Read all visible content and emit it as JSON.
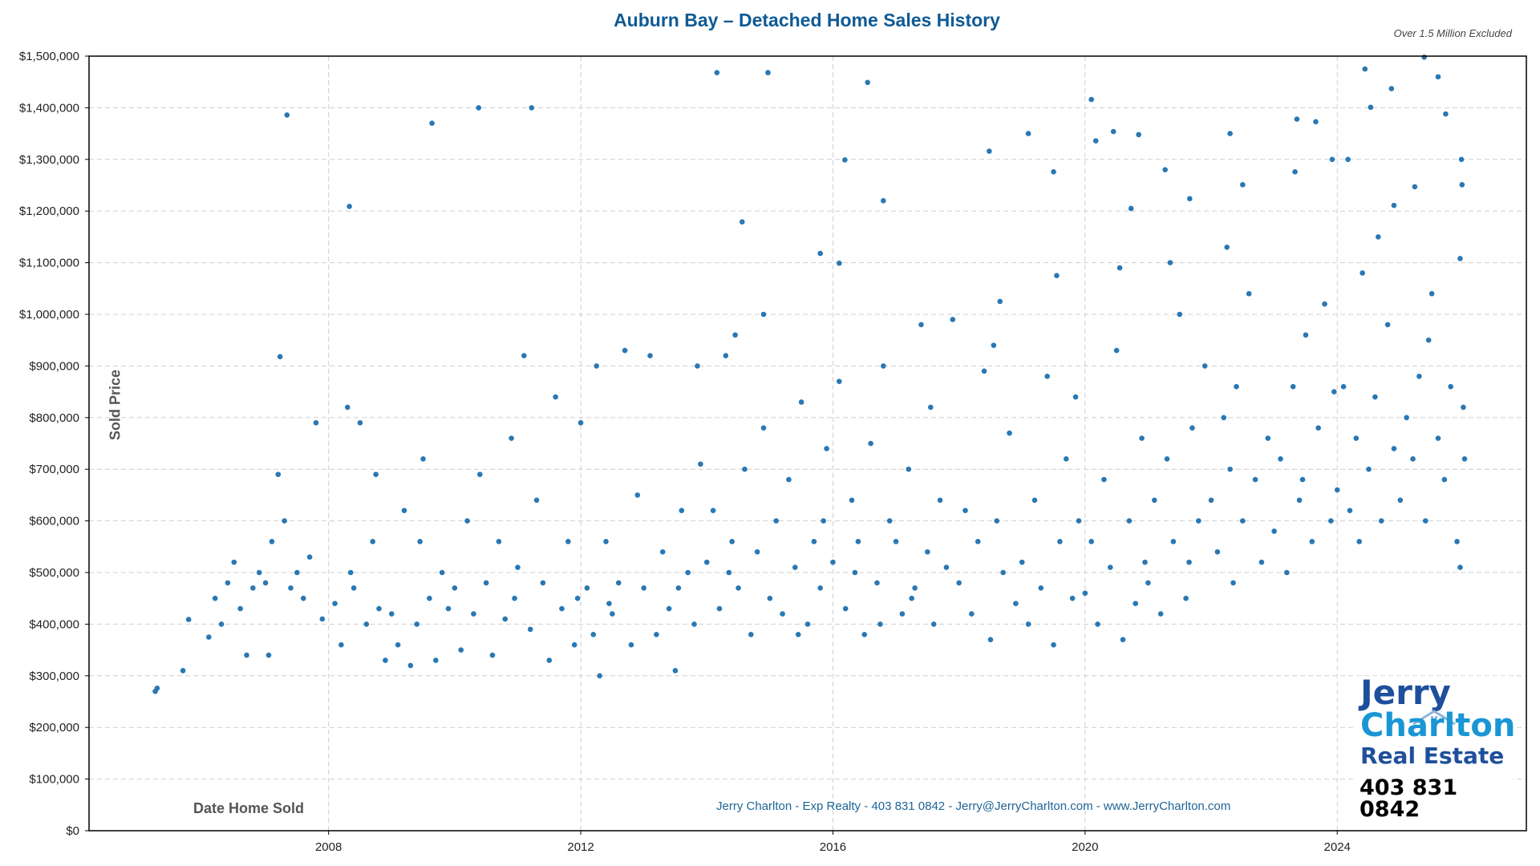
{
  "chart_data": {
    "type": "scatter",
    "title": "Auburn Bay – Detached Home Sales History",
    "subtitle": "Over 1.5 Million Excluded",
    "xlabel": "Date Home Sold",
    "ylabel": "Sold Price",
    "xlim": [
      2004.2,
      2027.0
    ],
    "ylim": [
      0,
      1500000
    ],
    "x_ticks": [
      2008,
      2012,
      2016,
      2020,
      2024
    ],
    "x_tick_labels": [
      "2008",
      "2012",
      "2016",
      "2020",
      "2024"
    ],
    "y_ticks": [
      0,
      100000,
      200000,
      300000,
      400000,
      500000,
      600000,
      700000,
      800000,
      900000,
      1000000,
      1100000,
      1200000,
      1300000,
      1400000,
      1500000
    ],
    "y_tick_labels": [
      "$0",
      "$100,000",
      "$200,000",
      "$300,000",
      "$400,000",
      "$500,000",
      "$600,000",
      "$700,000",
      "$800,000",
      "$900,000",
      "$1,000,000",
      "$1,100,000",
      "$1,200,000",
      "$1,300,000",
      "$1,400,000",
      "$1,500,000"
    ],
    "grid": true,
    "grid_style": "dashed",
    "marker_color": "#2878b5",
    "points": [
      [
        2005.25,
        270000
      ],
      [
        2005.28,
        276000
      ],
      [
        2005.69,
        310000
      ],
      [
        2005.78,
        409000
      ],
      [
        2006.1,
        375000
      ],
      [
        2007.34,
        1386000
      ],
      [
        2007.23,
        918000
      ],
      [
        2009.64,
        1370000
      ],
      [
        2010.38,
        1400000
      ],
      [
        2011.22,
        1400000
      ],
      [
        2008.33,
        1209000
      ],
      [
        2014.16,
        1468000
      ],
      [
        2014.97,
        1468000
      ],
      [
        2016.55,
        1449000
      ],
      [
        2014.56,
        1179000
      ],
      [
        2014.9,
        1000000
      ],
      [
        2016.19,
        1299000
      ],
      [
        2016.1,
        1099000
      ],
      [
        2015.8,
        1118000
      ],
      [
        2016.8,
        1220000
      ],
      [
        2018.48,
        1316000
      ],
      [
        2019.1,
        1350000
      ],
      [
        2019.5,
        1276000
      ],
      [
        2020.1,
        1416000
      ],
      [
        2020.17,
        1336000
      ],
      [
        2020.45,
        1354000
      ],
      [
        2020.85,
        1348000
      ],
      [
        2020.73,
        1205000
      ],
      [
        2021.27,
        1280000
      ],
      [
        2021.66,
        1224000
      ],
      [
        2022.3,
        1350000
      ],
      [
        2022.5,
        1251000
      ],
      [
        2023.36,
        1378000
      ],
      [
        2023.66,
        1373000
      ],
      [
        2023.33,
        1276000
      ],
      [
        2023.92,
        1300000
      ],
      [
        2024.17,
        1300000
      ],
      [
        2024.44,
        1475000
      ],
      [
        2024.53,
        1401000
      ],
      [
        2024.86,
        1437000
      ],
      [
        2025.38,
        1498000
      ],
      [
        2025.6,
        1460000
      ],
      [
        2025.72,
        1388000
      ],
      [
        2025.97,
        1300000
      ],
      [
        2024.9,
        1211000
      ],
      [
        2025.23,
        1247000
      ],
      [
        2025.95,
        1108000
      ],
      [
        2025.98,
        1251000
      ],
      [
        2006.2,
        450000
      ],
      [
        2006.4,
        480000
      ],
      [
        2006.5,
        520000
      ],
      [
        2006.6,
        430000
      ],
      [
        2006.8,
        470000
      ],
      [
        2006.9,
        500000
      ],
      [
        2006.3,
        400000
      ],
      [
        2006.7,
        340000
      ],
      [
        2007.0,
        480000
      ],
      [
        2007.1,
        560000
      ],
      [
        2007.2,
        690000
      ],
      [
        2007.3,
        600000
      ],
      [
        2007.4,
        470000
      ],
      [
        2007.5,
        500000
      ],
      [
        2007.6,
        450000
      ],
      [
        2007.7,
        530000
      ],
      [
        2007.9,
        410000
      ],
      [
        2007.8,
        790000
      ],
      [
        2007.05,
        340000
      ],
      [
        2008.1,
        440000
      ],
      [
        2008.2,
        360000
      ],
      [
        2008.3,
        820000
      ],
      [
        2008.4,
        470000
      ],
      [
        2008.5,
        790000
      ],
      [
        2008.6,
        400000
      ],
      [
        2008.7,
        560000
      ],
      [
        2008.8,
        430000
      ],
      [
        2008.9,
        330000
      ],
      [
        2008.35,
        500000
      ],
      [
        2008.75,
        690000
      ],
      [
        2009.0,
        420000
      ],
      [
        2009.1,
        360000
      ],
      [
        2009.2,
        620000
      ],
      [
        2009.3,
        320000
      ],
      [
        2009.4,
        400000
      ],
      [
        2009.5,
        720000
      ],
      [
        2009.6,
        450000
      ],
      [
        2009.7,
        330000
      ],
      [
        2009.8,
        500000
      ],
      [
        2009.9,
        430000
      ],
      [
        2009.45,
        560000
      ],
      [
        2010.0,
        470000
      ],
      [
        2010.1,
        350000
      ],
      [
        2010.2,
        600000
      ],
      [
        2010.3,
        420000
      ],
      [
        2010.4,
        690000
      ],
      [
        2010.5,
        480000
      ],
      [
        2010.6,
        340000
      ],
      [
        2010.7,
        560000
      ],
      [
        2010.8,
        410000
      ],
      [
        2010.9,
        760000
      ],
      [
        2010.95,
        450000
      ],
      [
        2011.0,
        510000
      ],
      [
        2011.1,
        920000
      ],
      [
        2011.2,
        390000
      ],
      [
        2011.3,
        640000
      ],
      [
        2011.4,
        480000
      ],
      [
        2011.5,
        330000
      ],
      [
        2011.6,
        840000
      ],
      [
        2011.7,
        430000
      ],
      [
        2011.8,
        560000
      ],
      [
        2011.9,
        360000
      ],
      [
        2011.95,
        450000
      ],
      [
        2012.0,
        790000
      ],
      [
        2012.1,
        470000
      ],
      [
        2012.2,
        380000
      ],
      [
        2012.3,
        300000
      ],
      [
        2012.4,
        560000
      ],
      [
        2012.5,
        420000
      ],
      [
        2012.6,
        480000
      ],
      [
        2012.7,
        930000
      ],
      [
        2012.8,
        360000
      ],
      [
        2012.9,
        650000
      ],
      [
        2012.25,
        900000
      ],
      [
        2012.45,
        440000
      ],
      [
        2013.0,
        470000
      ],
      [
        2013.1,
        920000
      ],
      [
        2013.2,
        380000
      ],
      [
        2013.3,
        540000
      ],
      [
        2013.4,
        430000
      ],
      [
        2013.5,
        310000
      ],
      [
        2013.6,
        620000
      ],
      [
        2013.7,
        500000
      ],
      [
        2013.8,
        400000
      ],
      [
        2013.9,
        710000
      ],
      [
        2013.55,
        470000
      ],
      [
        2013.85,
        900000
      ],
      [
        2014.0,
        520000
      ],
      [
        2014.1,
        620000
      ],
      [
        2014.2,
        430000
      ],
      [
        2014.3,
        920000
      ],
      [
        2014.4,
        560000
      ],
      [
        2014.5,
        470000
      ],
      [
        2014.6,
        700000
      ],
      [
        2014.7,
        380000
      ],
      [
        2014.8,
        540000
      ],
      [
        2014.9,
        780000
      ],
      [
        2014.45,
        960000
      ],
      [
        2014.35,
        500000
      ],
      [
        2015.0,
        450000
      ],
      [
        2015.1,
        600000
      ],
      [
        2015.2,
        420000
      ],
      [
        2015.3,
        680000
      ],
      [
        2015.4,
        510000
      ],
      [
        2015.5,
        830000
      ],
      [
        2015.6,
        400000
      ],
      [
        2015.7,
        560000
      ],
      [
        2015.8,
        470000
      ],
      [
        2015.9,
        740000
      ],
      [
        2015.45,
        380000
      ],
      [
        2015.85,
        600000
      ],
      [
        2016.0,
        520000
      ],
      [
        2016.1,
        870000
      ],
      [
        2016.2,
        430000
      ],
      [
        2016.3,
        640000
      ],
      [
        2016.4,
        560000
      ],
      [
        2016.5,
        380000
      ],
      [
        2016.6,
        750000
      ],
      [
        2016.7,
        480000
      ],
      [
        2016.8,
        900000
      ],
      [
        2016.9,
        600000
      ],
      [
        2016.35,
        500000
      ],
      [
        2016.75,
        400000
      ],
      [
        2017.0,
        560000
      ],
      [
        2017.1,
        420000
      ],
      [
        2017.2,
        700000
      ],
      [
        2017.3,
        470000
      ],
      [
        2017.4,
        980000
      ],
      [
        2017.5,
        540000
      ],
      [
        2017.6,
        400000
      ],
      [
        2017.7,
        640000
      ],
      [
        2017.8,
        510000
      ],
      [
        2017.9,
        990000
      ],
      [
        2017.55,
        820000
      ],
      [
        2017.25,
        450000
      ],
      [
        2018.0,
        480000
      ],
      [
        2018.1,
        620000
      ],
      [
        2018.2,
        420000
      ],
      [
        2018.3,
        560000
      ],
      [
        2018.4,
        890000
      ],
      [
        2018.5,
        370000
      ],
      [
        2018.6,
        600000
      ],
      [
        2018.7,
        500000
      ],
      [
        2018.8,
        770000
      ],
      [
        2018.9,
        440000
      ],
      [
        2018.55,
        940000
      ],
      [
        2018.65,
        1025000
      ],
      [
        2019.0,
        520000
      ],
      [
        2019.1,
        400000
      ],
      [
        2019.2,
        640000
      ],
      [
        2019.3,
        470000
      ],
      [
        2019.4,
        880000
      ],
      [
        2019.5,
        360000
      ],
      [
        2019.6,
        560000
      ],
      [
        2019.7,
        720000
      ],
      [
        2019.8,
        450000
      ],
      [
        2019.9,
        600000
      ],
      [
        2019.55,
        1075000
      ],
      [
        2019.85,
        840000
      ],
      [
        2020.0,
        460000
      ],
      [
        2020.1,
        560000
      ],
      [
        2020.2,
        400000
      ],
      [
        2020.3,
        680000
      ],
      [
        2020.4,
        510000
      ],
      [
        2020.5,
        930000
      ],
      [
        2020.6,
        370000
      ],
      [
        2020.7,
        600000
      ],
      [
        2020.8,
        440000
      ],
      [
        2020.9,
        760000
      ],
      [
        2020.55,
        1090000
      ],
      [
        2020.95,
        520000
      ],
      [
        2021.0,
        480000
      ],
      [
        2021.1,
        640000
      ],
      [
        2021.2,
        420000
      ],
      [
        2021.3,
        720000
      ],
      [
        2021.4,
        560000
      ],
      [
        2021.5,
        1000000
      ],
      [
        2021.6,
        450000
      ],
      [
        2021.7,
        780000
      ],
      [
        2021.8,
        600000
      ],
      [
        2021.9,
        900000
      ],
      [
        2021.35,
        1100000
      ],
      [
        2021.65,
        520000
      ],
      [
        2022.0,
        640000
      ],
      [
        2022.1,
        540000
      ],
      [
        2022.2,
        800000
      ],
      [
        2022.3,
        700000
      ],
      [
        2022.35,
        480000
      ],
      [
        2022.4,
        860000
      ],
      [
        2022.5,
        600000
      ],
      [
        2022.6,
        1040000
      ],
      [
        2022.7,
        680000
      ],
      [
        2022.8,
        520000
      ],
      [
        2022.9,
        760000
      ],
      [
        2022.25,
        1130000
      ],
      [
        2023.0,
        580000
      ],
      [
        2023.1,
        720000
      ],
      [
        2023.2,
        500000
      ],
      [
        2023.3,
        860000
      ],
      [
        2023.4,
        640000
      ],
      [
        2023.5,
        960000
      ],
      [
        2023.6,
        560000
      ],
      [
        2023.7,
        780000
      ],
      [
        2023.8,
        1020000
      ],
      [
        2023.9,
        600000
      ],
      [
        2023.45,
        680000
      ],
      [
        2023.95,
        850000
      ],
      [
        2024.0,
        660000
      ],
      [
        2024.1,
        860000
      ],
      [
        2024.2,
        620000
      ],
      [
        2024.3,
        760000
      ],
      [
        2024.4,
        1080000
      ],
      [
        2024.5,
        700000
      ],
      [
        2024.6,
        840000
      ],
      [
        2024.7,
        600000
      ],
      [
        2024.8,
        980000
      ],
      [
        2024.9,
        740000
      ],
      [
        2024.35,
        560000
      ],
      [
        2024.65,
        1150000
      ],
      [
        2025.0,
        640000
      ],
      [
        2025.1,
        800000
      ],
      [
        2025.2,
        720000
      ],
      [
        2025.3,
        880000
      ],
      [
        2025.4,
        600000
      ],
      [
        2025.5,
        1040000
      ],
      [
        2025.6,
        760000
      ],
      [
        2025.7,
        680000
      ],
      [
        2025.8,
        860000
      ],
      [
        2025.9,
        560000
      ],
      [
        2025.45,
        950000
      ],
      [
        2025.95,
        510000
      ],
      [
        2026.0,
        820000
      ],
      [
        2026.02,
        720000
      ]
    ]
  },
  "footer": "Jerry Charlton - Exp Realty - 403 831 0842 - Jerry@JerryCharlton.com - www.JerryCharlton.com",
  "logo": {
    "line1": "Jerry",
    "line2": "Charlton",
    "line3": "Real Estate",
    "phone": "403 831 0842",
    "colors": {
      "dark_blue": "#1e4f9c",
      "light_blue": "#1a96d4"
    }
  }
}
